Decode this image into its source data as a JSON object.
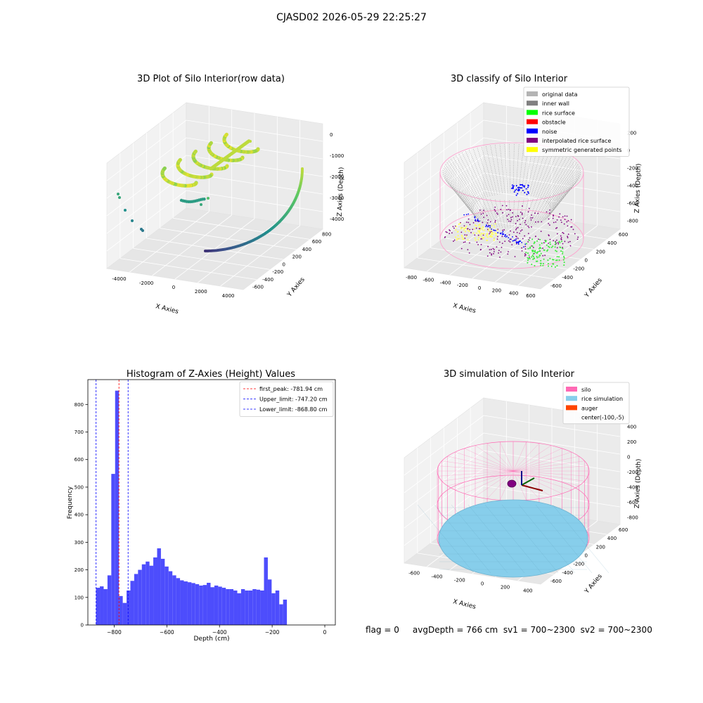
{
  "figure": {
    "suptitle": "CJASD02 2026-05-29 22:25:27",
    "status_text": "flag = 0     avgDepth = 766 cm  sv1 = 700~2300  sv2 = 700~2300"
  },
  "chart_data": [
    {
      "type": "scatter",
      "projection": "3d",
      "title": "3D Plot of Silo Interior(row data)",
      "xlabel": "X Axies",
      "ylabel": "Y Axies",
      "zlabel": "Z Axies (Depth)",
      "xticks": [
        "-4000",
        "-2000",
        "0",
        "2000",
        "4000"
      ],
      "yticks": [
        "-600",
        "-400",
        "-200",
        "0",
        "200",
        "400",
        "600",
        "800"
      ],
      "zticks": [
        "-4000",
        "-3000",
        "-2000",
        "-1000",
        "0"
      ],
      "colormap": "viridis",
      "grid": true
    },
    {
      "type": "scatter",
      "projection": "3d",
      "title": "3D classify of Silo Interior",
      "xlabel": "X Axies",
      "ylabel": "Y Axies",
      "zlabel": "Z Axies (Depth)",
      "xticks": [
        "-800",
        "-600",
        "-400",
        "-200",
        "0",
        "200",
        "400",
        "600"
      ],
      "yticks": [
        "-600",
        "-400",
        "-200",
        "0",
        "200",
        "400",
        "600"
      ],
      "zticks": [
        "-800",
        "-600",
        "-400",
        "-200",
        "0",
        "200"
      ],
      "legend_position": "top-right",
      "legend": [
        {
          "label": "original data",
          "color": "#b4b4b4"
        },
        {
          "label": "inner wall",
          "color": "#808080"
        },
        {
          "label": "rice surface",
          "color": "#00ff00"
        },
        {
          "label": "obstacle",
          "color": "#ff0000"
        },
        {
          "label": "noise",
          "color": "#0000ff"
        },
        {
          "label": "interpolated rice surface",
          "color": "#800080"
        },
        {
          "label": "symmetric generated points",
          "color": "#ffff00"
        }
      ],
      "grid": true
    },
    {
      "type": "bar",
      "title": "Histogram of Z-Axies (Height) Values",
      "xlabel": "Depth (cm)",
      "ylabel": "Frequency",
      "xlim": [
        -900,
        40
      ],
      "ylim": [
        0,
        890
      ],
      "xticks": [
        -800,
        -600,
        -400,
        -200,
        0
      ],
      "yticks": [
        0,
        100,
        200,
        300,
        400,
        500,
        600,
        700,
        800
      ],
      "bar_color": "#4d4dfc",
      "bin_start": -869,
      "bin_width": 14.5,
      "values": [
        135,
        140,
        130,
        180,
        548,
        850,
        105,
        80,
        125,
        160,
        185,
        200,
        220,
        230,
        215,
        245,
        278,
        240,
        212,
        195,
        180,
        170,
        162,
        158,
        155,
        152,
        148,
        143,
        145,
        153,
        137,
        143,
        139,
        135,
        130,
        130,
        125,
        115,
        130,
        125,
        125,
        130,
        128,
        125,
        245,
        165,
        115,
        125,
        75,
        92
      ],
      "vlines": [
        {
          "label": "first_peak: -781.94 cm",
          "x": -781.94,
          "color": "#ff0000"
        },
        {
          "label": "Upper_limit: -747.20 cm",
          "x": -747.2,
          "color": "#0000ff"
        },
        {
          "label": "Lower_limit: -868.80 cm",
          "x": -868.8,
          "color": "#0000ff"
        }
      ],
      "legend_position": "top-right"
    },
    {
      "type": "surface",
      "projection": "3d",
      "title": "3D simulation of Silo Interior",
      "xlabel": "X Axies",
      "ylabel": "Y Axies",
      "zlabel": "Z Axies (Depth)",
      "xticks": [
        "-600",
        "-400",
        "-200",
        "0",
        "200",
        "400"
      ],
      "yticks": [
        "-600",
        "-400",
        "-200",
        "0",
        "200",
        "400",
        "600"
      ],
      "zticks": [
        "-800",
        "-600",
        "-400",
        "-200",
        "0",
        "200",
        "400"
      ],
      "legend_position": "top-right",
      "legend": [
        {
          "label": "silo",
          "color": "#ff69b4"
        },
        {
          "label": "rice simulation",
          "color": "#87ceeb"
        },
        {
          "label": "auger",
          "color": "#ff4500"
        },
        {
          "label": "center(-100,-5)",
          "color": ""
        }
      ],
      "grid": true
    }
  ]
}
